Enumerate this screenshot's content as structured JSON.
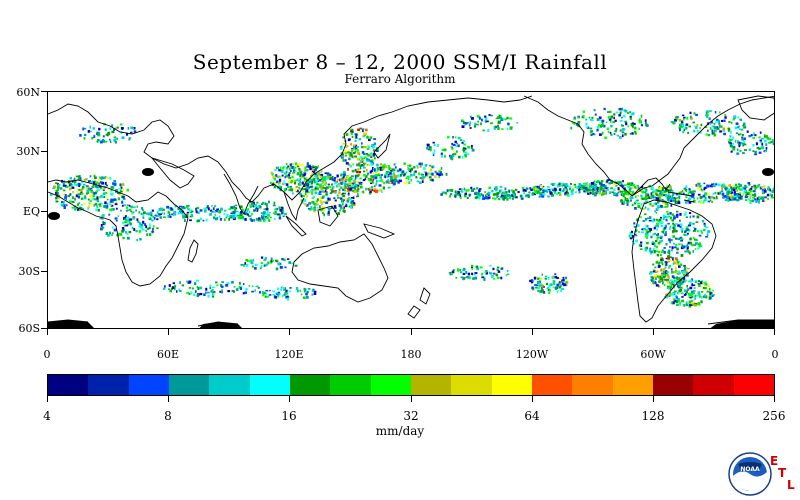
{
  "header": {
    "title": "September 8 – 12, 2000 SSM/I Rainfall",
    "subtitle": "Ferraro Algorithm"
  },
  "map": {
    "lat_labels": [
      "60N",
      "30N",
      "EQ",
      "30S",
      "60S"
    ],
    "lat_values": [
      60,
      30,
      0,
      -30,
      -60
    ],
    "lon_labels": [
      "0",
      "60E",
      "120E",
      "180",
      "120W",
      "60W",
      "0"
    ],
    "lon_values": [
      0,
      60,
      120,
      180,
      240,
      300,
      360
    ],
    "rain_colors": [
      "#0000cc",
      "#0044ff",
      "#00a0a0",
      "#00cccc",
      "#00ffff",
      "#00a000",
      "#00d000",
      "#00ff00",
      "#b4b400",
      "#dcdc00",
      "#ffff00",
      "#ff5000",
      "#ff8000",
      "#ffa000",
      "#a00000",
      "#d00000",
      "#ff0000"
    ],
    "land_color": "#000000"
  },
  "colorbar": {
    "colors": [
      "#000080",
      "#0022aa",
      "#0044ff",
      "#009999",
      "#00cccc",
      "#00ffff",
      "#009900",
      "#00cc00",
      "#00ff00",
      "#b4b400",
      "#dcdc00",
      "#ffff00",
      "#ff5000",
      "#ff8000",
      "#ffa000",
      "#990000",
      "#d00000",
      "#ff0000"
    ],
    "tick_labels": [
      "4",
      "8",
      "16",
      "32",
      "64",
      "128",
      "256"
    ],
    "units": "mm/day"
  },
  "logo": {
    "name": "NOAA",
    "etl_letters": [
      "E",
      "T",
      "L"
    ]
  }
}
